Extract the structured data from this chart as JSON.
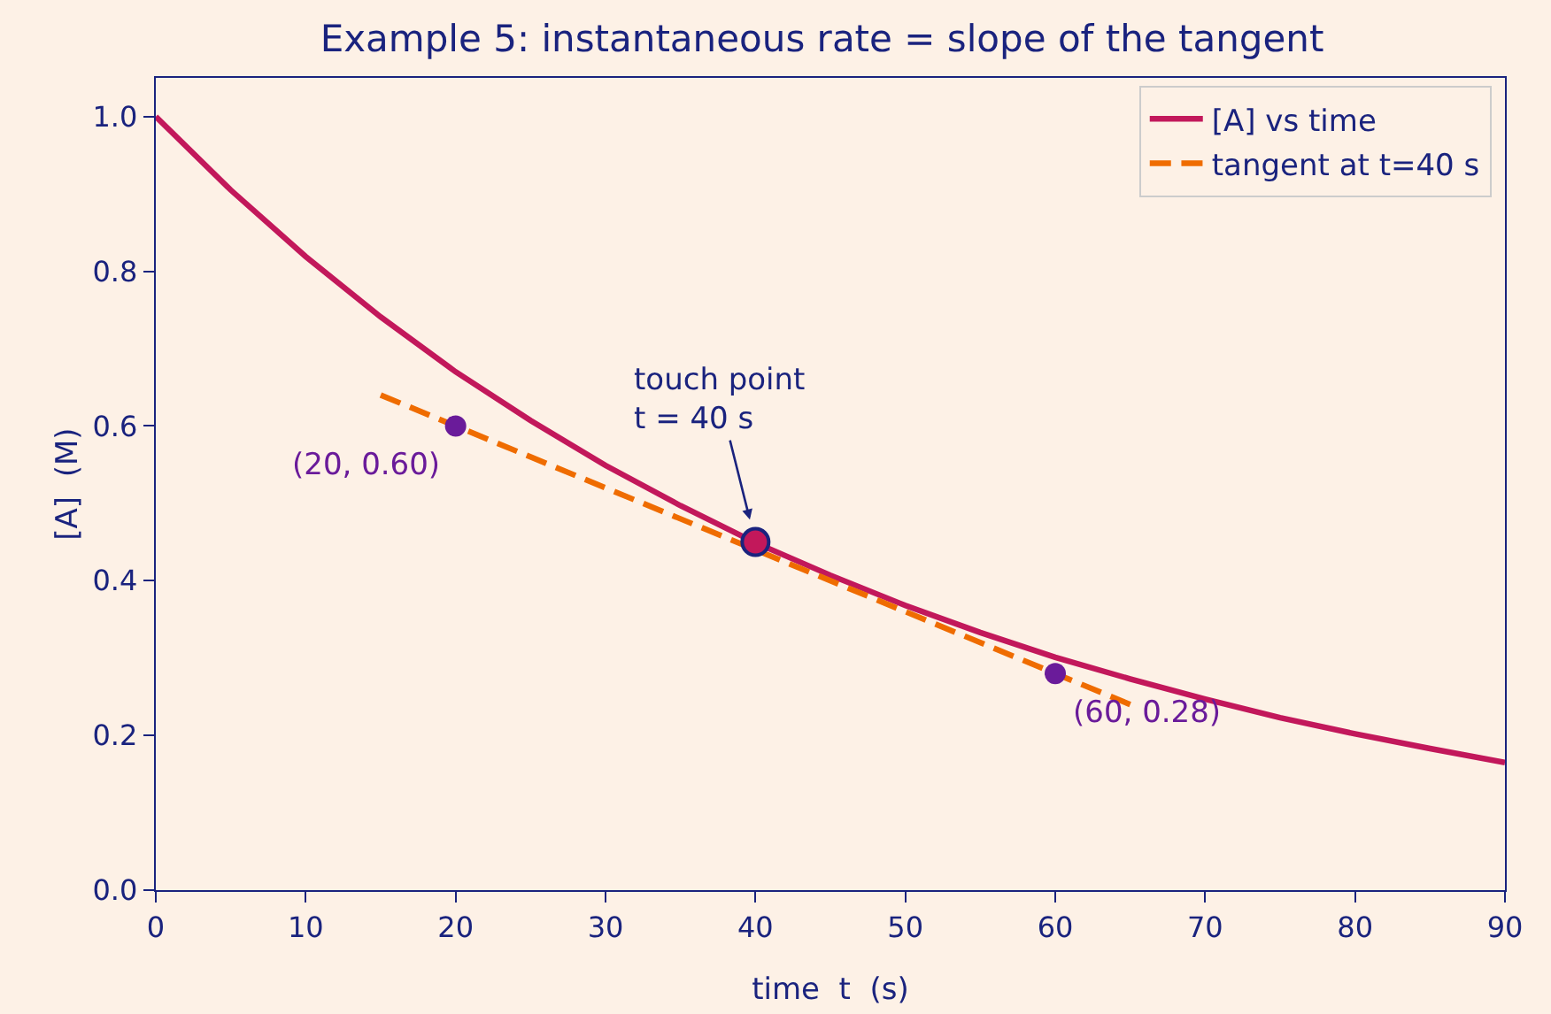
{
  "chart_data": {
    "type": "line",
    "title": "Example 5: instantaneous rate = slope of the tangent",
    "xlabel": "time  t  (s)",
    "ylabel": "[A]  (M)",
    "xlim": [
      0,
      90
    ],
    "xticks": [
      0,
      10,
      20,
      30,
      40,
      50,
      60,
      70,
      80,
      90
    ],
    "ylim": [
      0,
      1.05
    ],
    "yticks": [
      {
        "value": 0,
        "label": "0.0"
      },
      {
        "value": 0.2,
        "label": "0.2"
      },
      {
        "value": 0.4,
        "label": "0.4"
      },
      {
        "value": 0.6,
        "label": "0.6"
      },
      {
        "value": 0.8,
        "label": "0.8"
      },
      {
        "value": 1,
        "label": "1.0"
      }
    ],
    "grid": false,
    "legend": "top right",
    "series": [
      {
        "name": "[A] vs time",
        "color": "#c2185b",
        "line_style": "solid",
        "marker": "none",
        "x": [
          0,
          5,
          10,
          15,
          20,
          25,
          30,
          35,
          40,
          45,
          50,
          55,
          60,
          65,
          70,
          75,
          80,
          85,
          90
        ],
        "values": [
          1.0,
          0.905,
          0.819,
          0.741,
          0.67,
          0.607,
          0.549,
          0.497,
          0.449,
          0.407,
          0.368,
          0.333,
          0.301,
          0.273,
          0.247,
          0.223,
          0.202,
          0.183,
          0.165
        ]
      },
      {
        "name": "tangent at t=40 s",
        "color": "#ef6c00",
        "line_style": "dashed",
        "marker": "none",
        "x": [
          15,
          65
        ],
        "values": [
          0.64,
          0.24
        ]
      },
      {
        "type": "scatter",
        "color": "#6a1b9a",
        "marker": "circle",
        "x": [
          20,
          60
        ],
        "values": [
          0.6,
          0.28
        ]
      },
      {
        "type": "scatter",
        "color": "#c2185b",
        "marker": "circle",
        "x": [
          40
        ],
        "values": [
          0.45
        ]
      }
    ],
    "annotations": [
      {
        "text": "(20, 0.60)",
        "x": 20,
        "y": 0.6
      },
      {
        "text": "touch point\nt = 40 s",
        "x": 40,
        "y": 0.45
      },
      {
        "text": "(60, 0.28)",
        "x": 60,
        "y": 0.28
      }
    ]
  }
}
